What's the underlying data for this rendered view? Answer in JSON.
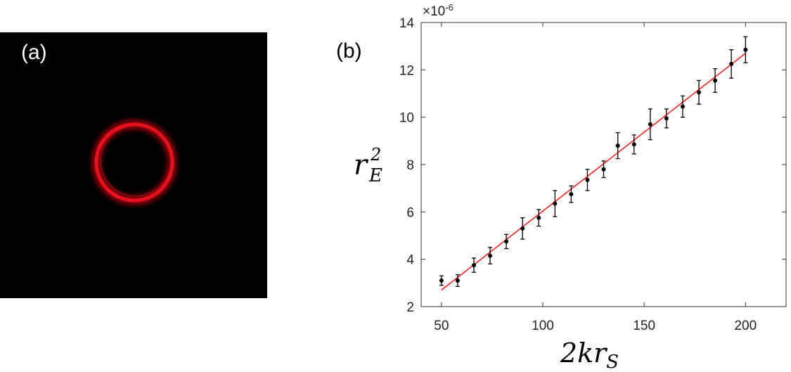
{
  "panel_a": {
    "label": "(a)",
    "colors": {
      "background": "#000000",
      "ring": "#e8101c"
    }
  },
  "panel_b": {
    "label": "(b)"
  },
  "chart_data": {
    "type": "scatter",
    "title": "",
    "xlabel": {
      "base": "2kr",
      "sub": "S"
    },
    "ylabel": {
      "base": "r",
      "sup": "2",
      "sub": "E"
    },
    "xlim": [
      40,
      220
    ],
    "ylim": [
      2,
      14
    ],
    "x_ticks": [
      50,
      100,
      150,
      200
    ],
    "y_ticks": [
      2,
      4,
      6,
      8,
      10,
      12,
      14
    ],
    "y_exponent_label": "×10",
    "y_exponent_power": "-6",
    "grid": false,
    "series": [
      {
        "marker_color": "#000000",
        "x": [
          50,
          58,
          66,
          74,
          82,
          90,
          98,
          106,
          114,
          122,
          130,
          137,
          145,
          153,
          161,
          169,
          177,
          185,
          193,
          200
        ],
        "y": [
          3.1,
          3.1,
          3.75,
          4.15,
          4.75,
          5.3,
          5.75,
          6.35,
          6.75,
          7.35,
          7.8,
          8.8,
          8.85,
          9.7,
          9.95,
          10.45,
          11.05,
          11.55,
          12.25,
          12.85
        ],
        "err": [
          0.2,
          0.25,
          0.3,
          0.35,
          0.3,
          0.45,
          0.35,
          0.55,
          0.35,
          0.45,
          0.35,
          0.55,
          0.4,
          0.65,
          0.4,
          0.45,
          0.5,
          0.5,
          0.6,
          0.55
        ]
      }
    ],
    "fit_line": {
      "color": "#ff2020",
      "x": [
        50,
        200
      ],
      "y": [
        2.7,
        12.7
      ]
    }
  }
}
